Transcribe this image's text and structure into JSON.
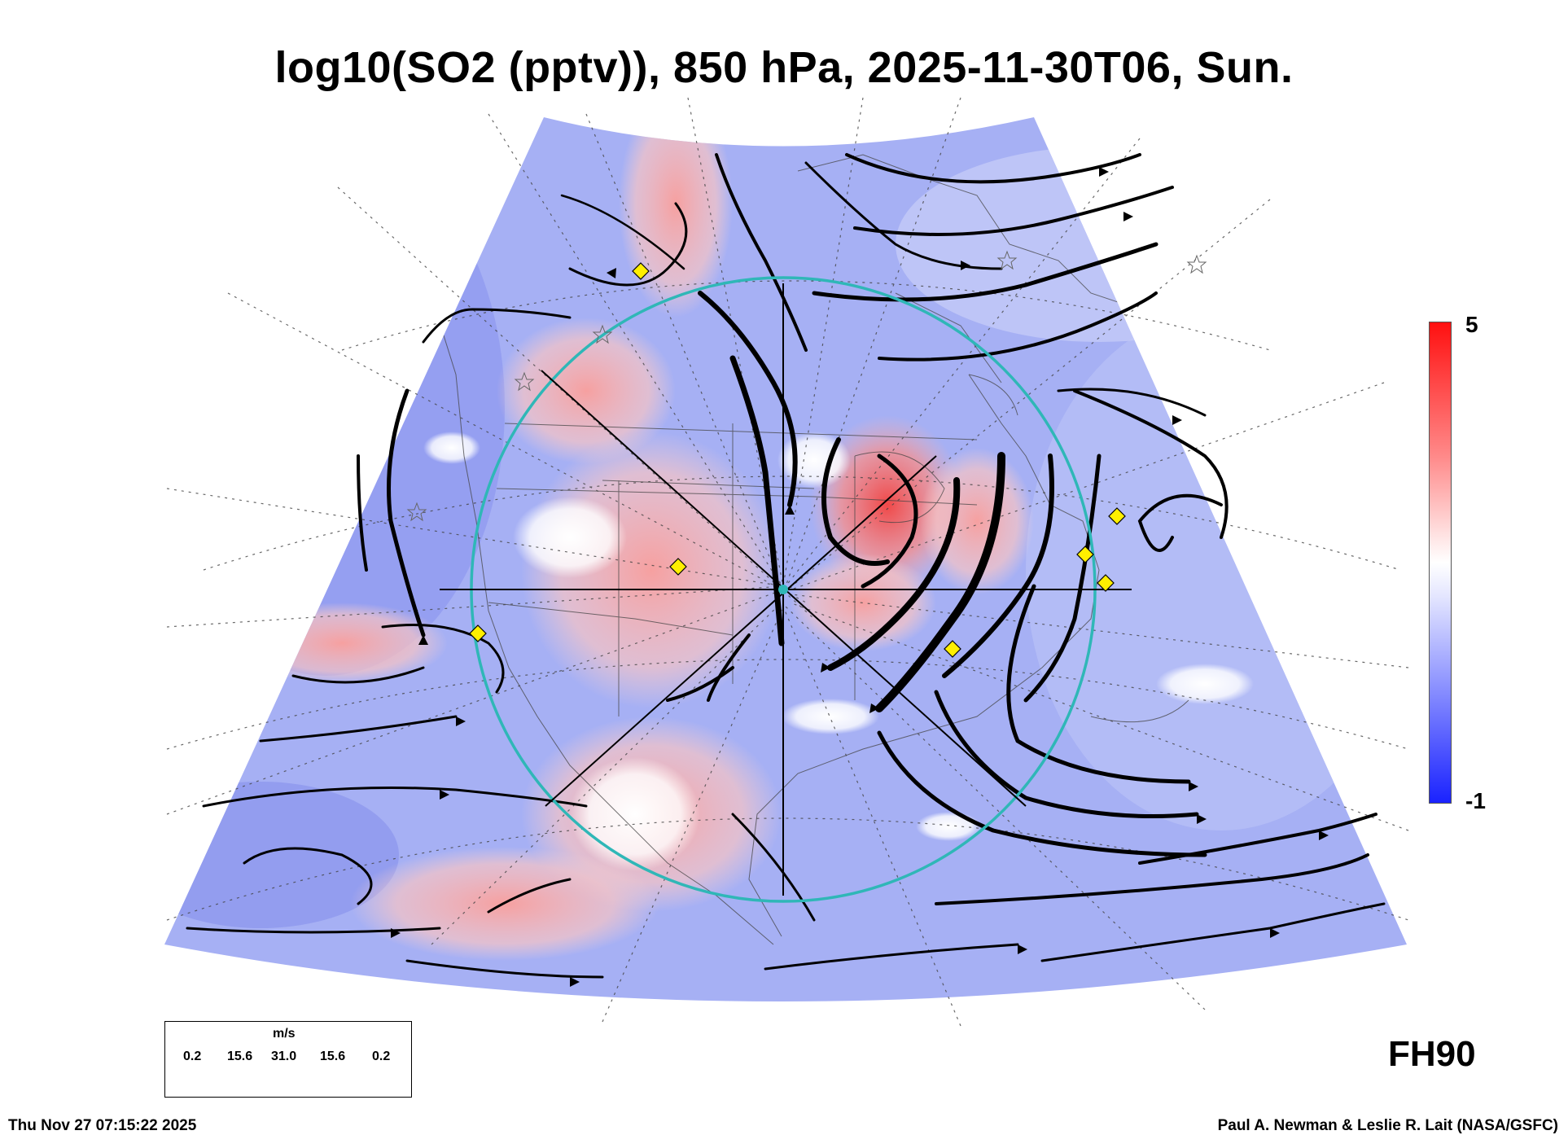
{
  "title": "log10(SO2 (pptv)), 850 hPa, 2025-11-30T06, Sun.",
  "colorbar": {
    "max_label": "5",
    "min_label": "-1",
    "high_color": "#ff1010",
    "mid_color": "#ffffff",
    "low_color": "#1a22ff"
  },
  "forecast_hour": "FH90",
  "timestamp": "Thu Nov 27 07:15:22 2025",
  "credit": "Paul A. Newman & Leslie R. Lait (NASA/GSFC)",
  "wind_legend": {
    "unit": "m/s",
    "ticks": [
      "0.2",
      "15.6",
      "31.0",
      "15.6",
      "0.2"
    ]
  },
  "overlay": {
    "ring_color": "#2fb7b7",
    "station_marker_color": "#ffef00"
  }
}
